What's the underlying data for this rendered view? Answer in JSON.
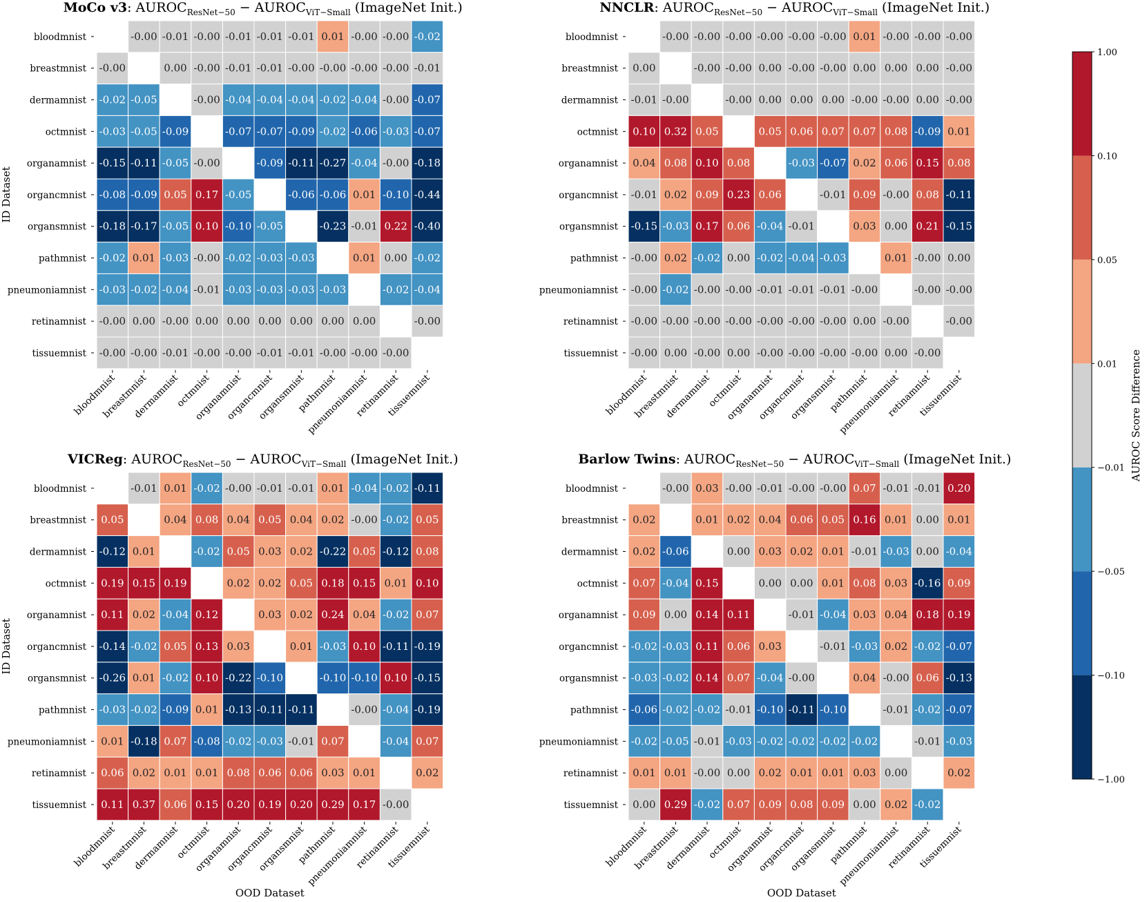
{
  "chart_data": [
    {
      "type": "heatmap",
      "title": {
        "method": "MoCo v3",
        "formula_main": ": AUROC",
        "sub1": "ResNet−50",
        "minus": " − AUROC",
        "sub2": "ViT−Small",
        "suffix": " (ImageNet Init.)"
      },
      "ylabel": "ID Dataset",
      "xlabel": "",
      "values": [
        [
          null,
          "-0.00",
          "-0.01",
          "-0.00",
          "-0.01",
          "-0.01",
          "-0.01",
          "0.01",
          "-0.00",
          "-0.00",
          "-0.02"
        ],
        [
          "-0.00",
          null,
          "0.00",
          "-0.00",
          "-0.01",
          "-0.01",
          "-0.00",
          "-0.00",
          "-0.00",
          "-0.00",
          "-0.01"
        ],
        [
          "-0.02",
          "-0.05",
          null,
          "-0.00",
          "-0.04",
          "-0.04",
          "-0.04",
          "-0.02",
          "-0.04",
          "-0.00",
          "-0.07"
        ],
        [
          "-0.03",
          "-0.05",
          "-0.09",
          null,
          "-0.07",
          "-0.07",
          "-0.09",
          "-0.02",
          "-0.06",
          "-0.03",
          "-0.07"
        ],
        [
          "-0.15",
          "-0.11",
          "-0.05",
          "-0.00",
          null,
          "-0.09",
          "-0.11",
          "-0.27",
          "-0.04",
          "-0.00",
          "-0.18"
        ],
        [
          "-0.08",
          "-0.09",
          "0.05",
          "0.17",
          "-0.05",
          null,
          "-0.06",
          "-0.06",
          "0.01",
          "-0.10",
          "-0.44"
        ],
        [
          "-0.18",
          "-0.17",
          "-0.05",
          "0.10",
          "-0.10",
          "-0.05",
          null,
          "-0.23",
          "-0.01",
          "0.22",
          "-0.40"
        ],
        [
          "-0.02",
          "0.01",
          "-0.03",
          "-0.00",
          "-0.02",
          "-0.03",
          "-0.03",
          null,
          "0.01",
          "0.00",
          "-0.02"
        ],
        [
          "-0.03",
          "-0.02",
          "-0.04",
          "-0.01",
          "-0.03",
          "-0.03",
          "-0.03",
          "-0.03",
          null,
          "-0.02",
          "-0.04"
        ],
        [
          "-0.00",
          "0.00",
          "-0.00",
          "0.00",
          "0.00",
          "0.00",
          "0.00",
          "0.00",
          "0.00",
          null,
          "-0.00"
        ],
        [
          "-0.00",
          "-0.00",
          "-0.01",
          "-0.00",
          "-0.00",
          "-0.01",
          "-0.01",
          "-0.00",
          "-0.00",
          "-0.00",
          null
        ]
      ]
    },
    {
      "type": "heatmap",
      "title": {
        "method": "NNCLR",
        "formula_main": ": AUROC",
        "sub1": "ResNet−50",
        "minus": " − AUROC",
        "sub2": "ViT−Small",
        "suffix": " (ImageNet Init.)"
      },
      "ylabel": "",
      "xlabel": "",
      "values": [
        [
          null,
          "-0.00",
          "-0.00",
          "-0.00",
          "-0.00",
          "-0.00",
          "-0.00",
          "0.01",
          "-0.00",
          "-0.00",
          "-0.00"
        ],
        [
          "0.00",
          null,
          "-0.00",
          "-0.00",
          "0.00",
          "-0.00",
          "-0.00",
          "0.00",
          "0.00",
          "0.00",
          "-0.00"
        ],
        [
          "-0.01",
          "-0.00",
          null,
          "-0.00",
          "0.00",
          "0.00",
          "0.00",
          "-0.00",
          "-0.00",
          "0.00",
          "-0.00"
        ],
        [
          "0.10",
          "0.32",
          "0.05",
          null,
          "0.05",
          "0.06",
          "0.07",
          "0.07",
          "0.08",
          "-0.09",
          "0.01"
        ],
        [
          "0.04",
          "0.08",
          "0.10",
          "0.08",
          null,
          "-0.03",
          "-0.07",
          "0.02",
          "0.06",
          "0.15",
          "0.08"
        ],
        [
          "-0.01",
          "0.02",
          "0.09",
          "0.23",
          "0.06",
          null,
          "-0.01",
          "0.09",
          "-0.00",
          "0.08",
          "-0.11"
        ],
        [
          "-0.15",
          "-0.03",
          "0.17",
          "0.06",
          "-0.04",
          "-0.01",
          null,
          "0.03",
          "0.00",
          "0.21",
          "-0.15"
        ],
        [
          "-0.00",
          "0.02",
          "-0.02",
          "0.00",
          "-0.02",
          "-0.04",
          "-0.03",
          null,
          "0.01",
          "-0.00",
          "0.00"
        ],
        [
          "-0.00",
          "-0.02",
          "-0.00",
          "-0.00",
          "-0.01",
          "-0.01",
          "-0.01",
          "-0.00",
          null,
          "-0.00",
          "-0.00"
        ],
        [
          "-0.00",
          "-0.00",
          "-0.00",
          "-0.00",
          "-0.00",
          "-0.00",
          "-0.00",
          "0.00",
          "-0.00",
          null,
          "-0.00"
        ],
        [
          "-0.00",
          "0.00",
          "-0.00",
          "0.00",
          "-0.00",
          "-0.00",
          "-0.00",
          "-0.00",
          "0.00",
          "-0.00",
          null
        ]
      ]
    },
    {
      "type": "heatmap",
      "title": {
        "method": "VICReg",
        "formula_main": ": AUROC",
        "sub1": "ResNet−50",
        "minus": " − AUROC",
        "sub2": "ViT−Small",
        "suffix": " (ImageNet Init.)"
      },
      "ylabel": "ID Dataset",
      "xlabel": "OOD Dataset",
      "values": [
        [
          null,
          "-0.01",
          "0.01",
          "-0.02",
          "-0.00",
          "-0.01",
          "-0.01",
          "0.01",
          "-0.04",
          "-0.02",
          "-0.11"
        ],
        [
          "0.05",
          null,
          "0.04",
          "0.08",
          "0.04",
          "0.05",
          "0.04",
          "0.02",
          "-0.00",
          "-0.02",
          "0.05"
        ],
        [
          "-0.12",
          "0.01",
          null,
          "-0.02",
          "0.05",
          "0.03",
          "0.02",
          "-0.22",
          "0.05",
          "-0.12",
          "0.08"
        ],
        [
          "0.19",
          "0.15",
          "0.19",
          null,
          "0.02",
          "0.02",
          "0.05",
          "0.18",
          "0.15",
          "0.01",
          "0.10"
        ],
        [
          "0.11",
          "0.02",
          "-0.04",
          "0.12",
          null,
          "0.03",
          "0.02",
          "0.24",
          "0.04",
          "-0.02",
          "0.07"
        ],
        [
          "-0.14",
          "-0.02",
          "0.05",
          "0.13",
          "0.03",
          null,
          "0.01",
          "-0.03",
          "0.10",
          "-0.11",
          "-0.19"
        ],
        [
          "-0.26",
          "0.01",
          "-0.02",
          "0.10",
          "-0.22",
          "-0.10",
          null,
          "-0.10",
          "-0.10",
          "0.10",
          "-0.15"
        ],
        [
          "-0.03",
          "-0.02",
          "-0.09",
          "0.01",
          "-0.13",
          "-0.11",
          "-0.11",
          null,
          "-0.00",
          "-0.04",
          "-0.19"
        ],
        [
          "0.01",
          "-0.18",
          "0.07",
          "-0.08",
          "-0.02",
          "-0.03",
          "-0.01",
          "0.07",
          null,
          "-0.04",
          "0.07"
        ],
        [
          "0.06",
          "0.02",
          "0.01",
          "0.01",
          "0.08",
          "0.06",
          "0.06",
          "0.03",
          "0.01",
          null,
          "0.02"
        ],
        [
          "0.11",
          "0.37",
          "0.06",
          "0.15",
          "0.20",
          "0.19",
          "0.20",
          "0.29",
          "0.17",
          "-0.00",
          null
        ]
      ]
    },
    {
      "type": "heatmap",
      "title": {
        "method": "Barlow Twins",
        "formula_main": ": AUROC",
        "sub1": "ResNet−50",
        "minus": " − AUROC",
        "sub2": "ViT−Small",
        "suffix": " (ImageNet Init.)"
      },
      "ylabel": "",
      "xlabel": "OOD Dataset",
      "values": [
        [
          null,
          "-0.00",
          "0.03",
          "-0.00",
          "-0.01",
          "-0.00",
          "-0.00",
          "0.07",
          "-0.01",
          "-0.01",
          "0.20"
        ],
        [
          "0.02",
          null,
          "0.01",
          "0.02",
          "0.04",
          "0.06",
          "0.05",
          "0.16",
          "0.01",
          "0.00",
          "0.01"
        ],
        [
          "0.02",
          "-0.06",
          null,
          "0.00",
          "0.03",
          "0.02",
          "0.01",
          "-0.01",
          "-0.03",
          "0.00",
          "-0.04"
        ],
        [
          "0.07",
          "-0.04",
          "0.15",
          null,
          "0.00",
          "0.00",
          "0.01",
          "0.08",
          "0.03",
          "-0.16",
          "0.09"
        ],
        [
          "0.09",
          "0.00",
          "0.14",
          "0.11",
          null,
          "-0.01",
          "-0.04",
          "0.03",
          "0.04",
          "0.18",
          "0.19"
        ],
        [
          "-0.02",
          "-0.03",
          "0.11",
          "0.06",
          "0.03",
          null,
          "-0.01",
          "-0.03",
          "0.02",
          "-0.02",
          "-0.07"
        ],
        [
          "-0.03",
          "-0.02",
          "0.14",
          "0.07",
          "-0.04",
          "-0.00",
          null,
          "0.04",
          "-0.00",
          "0.06",
          "-0.13"
        ],
        [
          "-0.06",
          "-0.02",
          "-0.02",
          "-0.01",
          "-0.10",
          "-0.11",
          "-0.10",
          null,
          "-0.01",
          "-0.02",
          "-0.07"
        ],
        [
          "-0.02",
          "-0.05",
          "-0.01",
          "-0.03",
          "-0.02",
          "-0.02",
          "-0.02",
          "-0.02",
          null,
          "-0.01",
          "-0.03"
        ],
        [
          "0.01",
          "0.01",
          "-0.00",
          "0.00",
          "0.02",
          "0.01",
          "0.01",
          "0.03",
          "0.00",
          null,
          "0.02"
        ],
        [
          "0.00",
          "0.29",
          "-0.02",
          "0.07",
          "0.09",
          "0.08",
          "0.09",
          "0.00",
          "0.02",
          "-0.02",
          null
        ]
      ]
    }
  ],
  "datasets": [
    "bloodmnist",
    "breastmnist",
    "dermamnist",
    "octmnist",
    "organamnist",
    "organcmnist",
    "organsmnist",
    "pathmnist",
    "pneumoniamnist",
    "retinamnist",
    "tissuemnist"
  ],
  "colorbar": {
    "label": "AUROC Score Difference",
    "ticks": [
      "1.00",
      "0.10",
      "0.05",
      "0.01",
      "−0.01",
      "−0.05",
      "−0.10",
      "−1.00"
    ],
    "boundaries": [
      -1.0,
      -0.1,
      -0.05,
      -0.01,
      0.01,
      0.05,
      0.1,
      1.0
    ],
    "colors": [
      "#053061",
      "#2166ac",
      "#4393c3",
      "#d1d1d1",
      "#f4a582",
      "#d6604d",
      "#b2182b"
    ]
  },
  "empty_marker": "-"
}
